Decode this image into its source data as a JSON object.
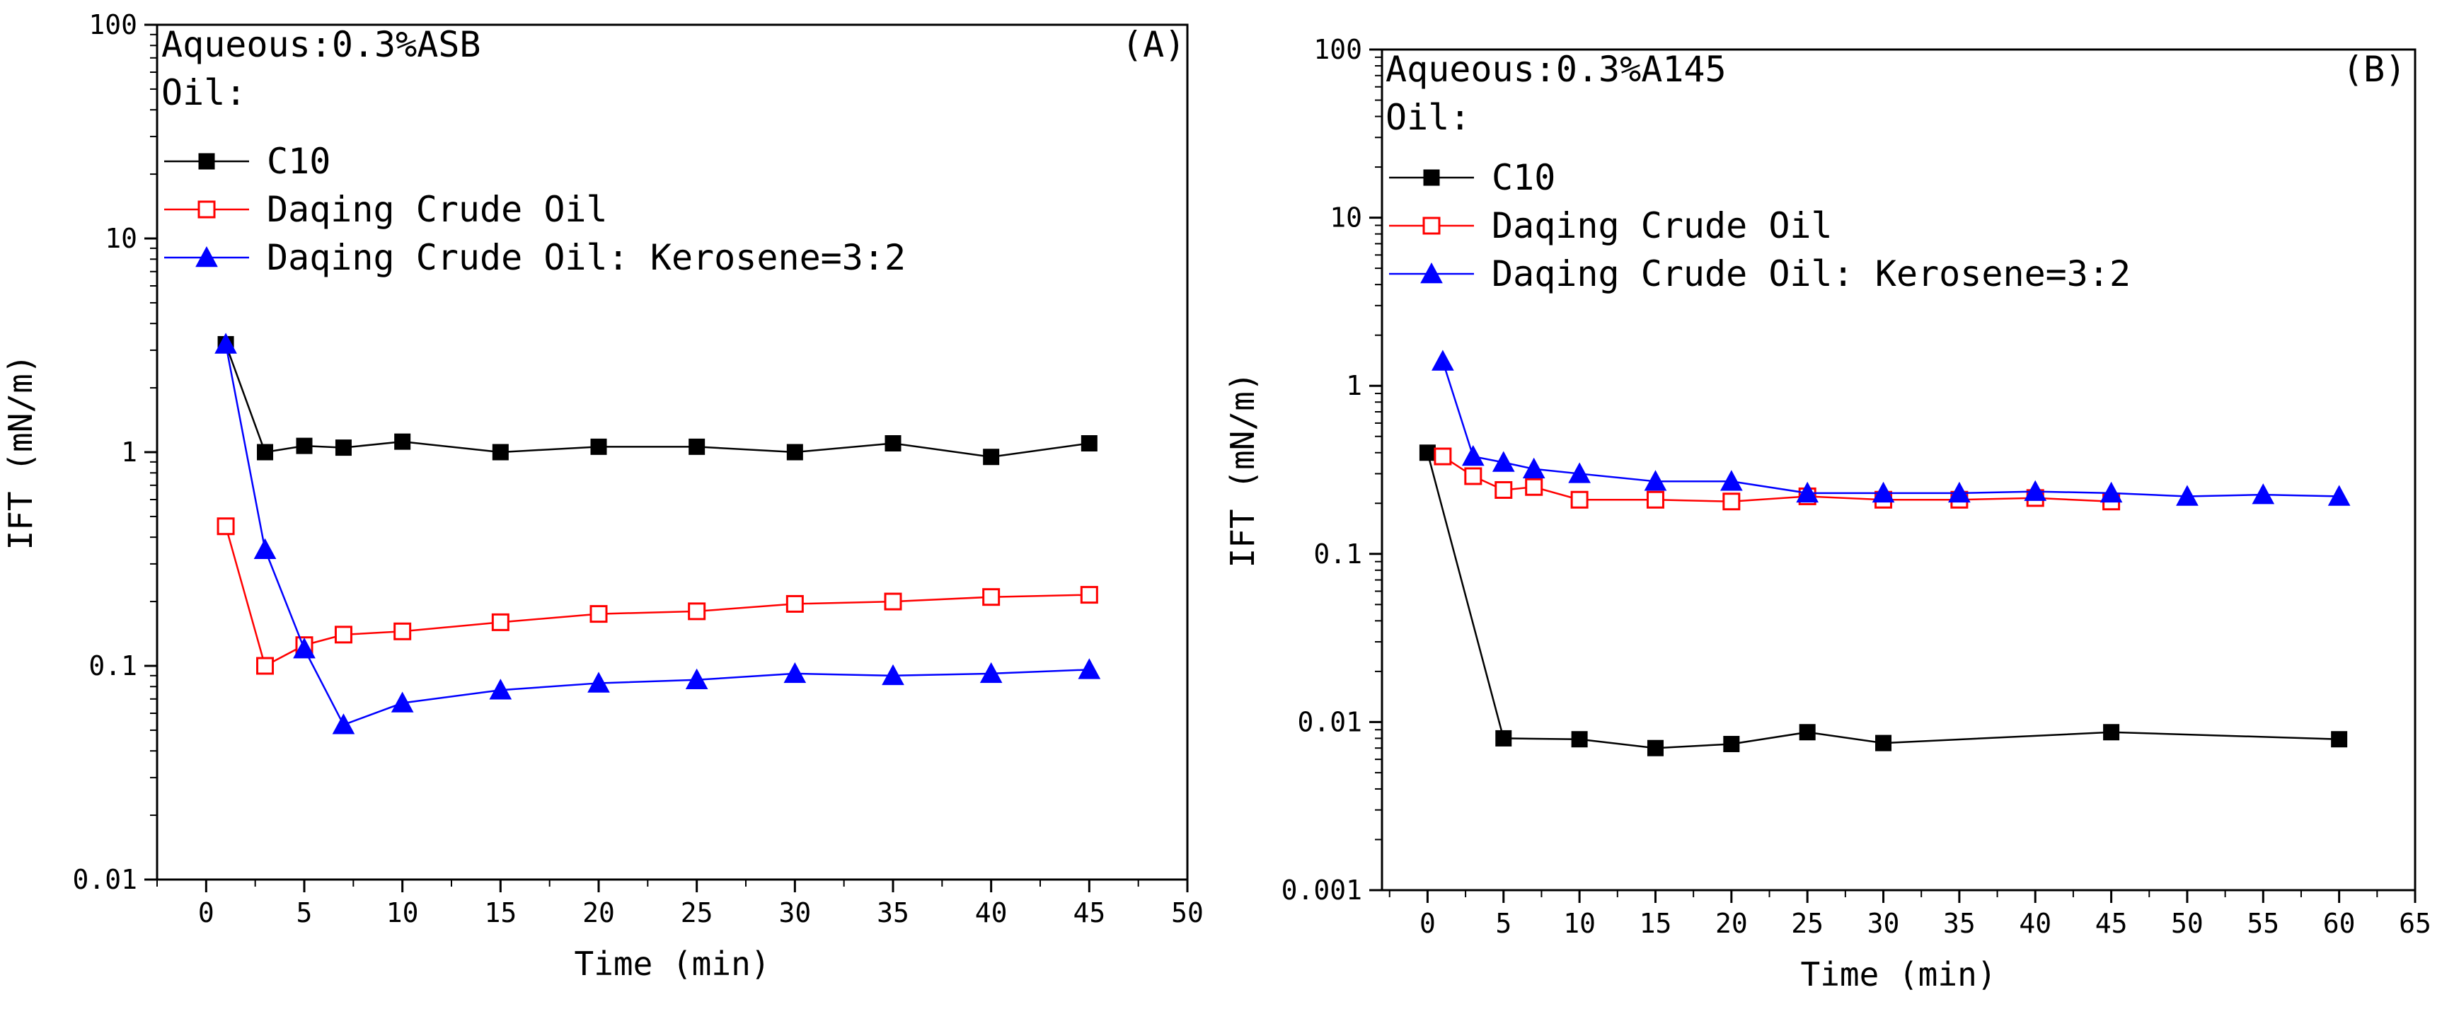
{
  "chart_data": [
    {
      "type": "line",
      "panel_label": "(A)",
      "xlabel": "Time (min)",
      "ylabel": "IFT (mN/m)",
      "yscale": "log",
      "xlim": [
        -2.5,
        50
      ],
      "ylim": [
        0.01,
        100
      ],
      "x_ticks": [
        0,
        5,
        10,
        15,
        20,
        25,
        30,
        35,
        40,
        45,
        50
      ],
      "y_ticks": [
        0.01,
        0.1,
        1,
        10,
        100
      ],
      "y_tick_labels": [
        "0.01",
        "0.1",
        "1",
        "10",
        "100"
      ],
      "annotations": [
        "Aqueous:0.3%ASB",
        "Oil:"
      ],
      "legend_position": "top-left",
      "series": [
        {
          "name": "C10",
          "color": "#000000",
          "marker": "square-filled",
          "x": [
            1,
            3,
            5,
            7,
            10,
            15,
            20,
            25,
            30,
            35,
            40,
            45
          ],
          "y": [
            3.2,
            1.0,
            1.07,
            1.05,
            1.12,
            1.0,
            1.06,
            1.06,
            1.0,
            1.1,
            0.95,
            1.1
          ]
        },
        {
          "name": "Daqing Crude Oil",
          "color": "#ff0000",
          "marker": "square-open",
          "x": [
            1,
            3,
            5,
            7,
            10,
            15,
            20,
            25,
            30,
            35,
            40,
            45
          ],
          "y": [
            0.45,
            0.1,
            0.125,
            0.14,
            0.145,
            0.16,
            0.175,
            0.18,
            0.195,
            0.2,
            0.21,
            0.215
          ]
        },
        {
          "name": "Daqing Crude Oil: Kerosene=3:2",
          "color": "#0000ff",
          "marker": "triangle-filled",
          "x": [
            1,
            3,
            5,
            7,
            10,
            15,
            20,
            25,
            30,
            35,
            40,
            45
          ],
          "y": [
            3.2,
            0.35,
            0.12,
            0.053,
            0.067,
            0.077,
            0.083,
            0.086,
            0.092,
            0.09,
            0.092,
            0.096
          ]
        }
      ]
    },
    {
      "type": "line",
      "panel_label": "(B)",
      "xlabel": "Time (min)",
      "ylabel": "IFT (mN/m)",
      "yscale": "log",
      "xlim": [
        -3,
        65
      ],
      "ylim": [
        0.001,
        100
      ],
      "x_ticks": [
        0,
        5,
        10,
        15,
        20,
        25,
        30,
        35,
        40,
        45,
        50,
        55,
        60,
        65
      ],
      "y_ticks": [
        0.001,
        0.01,
        0.1,
        1,
        10,
        100
      ],
      "y_tick_labels": [
        "0.001",
        "0.01",
        "0.1",
        "1",
        "10",
        "100"
      ],
      "annotations": [
        "Aqueous:0.3%A145",
        "Oil:"
      ],
      "legend_position": "top-left",
      "series": [
        {
          "name": "C10",
          "color": "#000000",
          "marker": "square-filled",
          "x": [
            0,
            5,
            10,
            15,
            20,
            25,
            30,
            45,
            60
          ],
          "y": [
            0.4,
            0.008,
            0.0079,
            0.007,
            0.0074,
            0.0087,
            0.0075,
            0.0087,
            0.0079
          ]
        },
        {
          "name": "Daqing Crude Oil",
          "color": "#ff0000",
          "marker": "square-open",
          "x": [
            1,
            3,
            5,
            7,
            10,
            15,
            20,
            25,
            30,
            35,
            40,
            45
          ],
          "y": [
            0.38,
            0.29,
            0.24,
            0.25,
            0.21,
            0.21,
            0.205,
            0.22,
            0.21,
            0.21,
            0.215,
            0.205
          ]
        },
        {
          "name": "Daqing Crude Oil: Kerosene=3:2",
          "color": "#0000ff",
          "marker": "triangle-filled",
          "x": [
            1,
            3,
            5,
            7,
            10,
            15,
            20,
            25,
            30,
            35,
            40,
            45,
            50,
            55,
            60
          ],
          "y": [
            1.4,
            0.38,
            0.35,
            0.32,
            0.3,
            0.27,
            0.27,
            0.23,
            0.23,
            0.23,
            0.235,
            0.23,
            0.22,
            0.225,
            0.22
          ]
        }
      ]
    }
  ]
}
